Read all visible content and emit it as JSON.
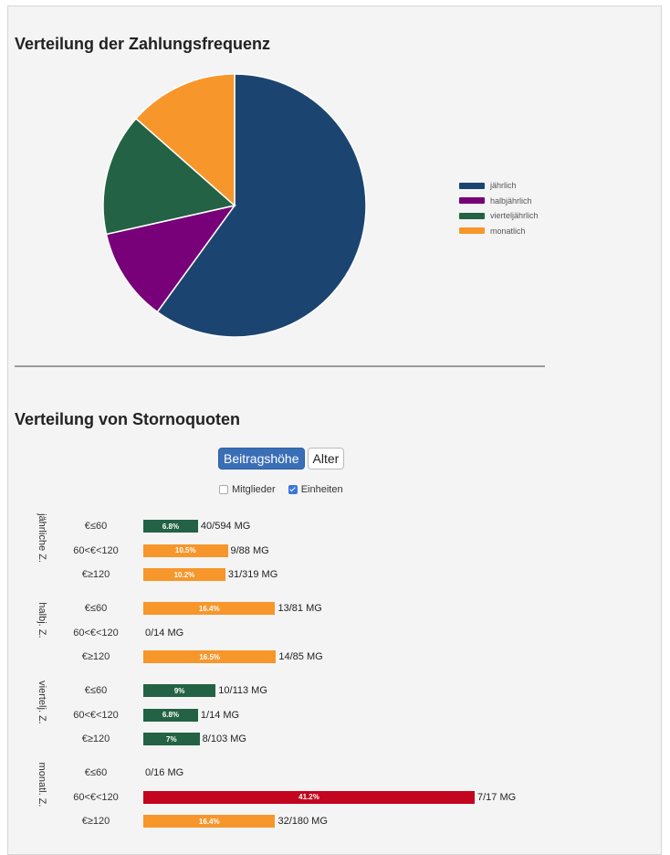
{
  "pie_section": {
    "title": "Verteilung der Zahlungsfrequenz"
  },
  "storno_section": {
    "title": "Verteilung von Stornoquoten",
    "buttons": [
      {
        "label": "Beitragshöhe",
        "active": true
      },
      {
        "label": "Alter",
        "active": false
      }
    ],
    "checkboxes": [
      {
        "label": "Mitglieder",
        "checked": false
      },
      {
        "label": "Einheiten",
        "checked": true
      }
    ]
  },
  "colors": {
    "jaehrlich": "#1b4570",
    "halbjaehrlich": "#780078",
    "vierteljaehrlich": "#236245",
    "monatlich": "#f7962a",
    "bar_green": "#236245",
    "bar_orange": "#f7962a",
    "bar_red": "#c3051f"
  },
  "chart_data": [
    {
      "type": "pie",
      "title": "Verteilung der Zahlungsfrequenz",
      "legend_position": "right",
      "slices": [
        {
          "label": "jährlich",
          "value": 60,
          "color": "#1b4570"
        },
        {
          "label": "halbjährlich",
          "value": 11.5,
          "color": "#780078"
        },
        {
          "label": "vierteljährlich",
          "value": 15,
          "color": "#236245"
        },
        {
          "label": "monatlich",
          "value": 13.5,
          "color": "#f7962a"
        }
      ]
    },
    {
      "type": "bar",
      "orientation": "horizontal",
      "title": "Verteilung von Stornoquoten",
      "xlim": [
        0,
        50
      ],
      "groups": [
        {
          "label": "jährliche Z.",
          "rows": [
            {
              "category": "€≤60",
              "value": 6.8,
              "bar_label": "6.8%",
              "count": "40/594 MG",
              "color": "#236245"
            },
            {
              "category": "60<€<120",
              "value": 10.5,
              "bar_label": "10.5%",
              "count": "9/88 MG",
              "color": "#f7962a"
            },
            {
              "category": "€≥120",
              "value": 10.2,
              "bar_label": "10.2%",
              "count": "31/319 MG",
              "color": "#f7962a"
            }
          ]
        },
        {
          "label": "halbj. Z.",
          "rows": [
            {
              "category": "€≤60",
              "value": 16.4,
              "bar_label": "16.4%",
              "count": "13/81 MG",
              "color": "#f7962a"
            },
            {
              "category": "60<€<120",
              "value": 0,
              "bar_label": "",
              "count": "0/14 MG",
              "color": "#236245"
            },
            {
              "category": "€≥120",
              "value": 16.5,
              "bar_label": "16.5%",
              "count": "14/85 MG",
              "color": "#f7962a"
            }
          ]
        },
        {
          "label": "viertelj. Z.",
          "rows": [
            {
              "category": "€≤60",
              "value": 9,
              "bar_label": "9%",
              "count": "10/113 MG",
              "color": "#236245"
            },
            {
              "category": "60<€<120",
              "value": 6.8,
              "bar_label": "6.8%",
              "count": "1/14 MG",
              "color": "#236245"
            },
            {
              "category": "€≥120",
              "value": 7,
              "bar_label": "7%",
              "count": "8/103 MG",
              "color": "#236245"
            }
          ]
        },
        {
          "label": "monatl. Z.",
          "rows": [
            {
              "category": "€≤60",
              "value": 0,
              "bar_label": "",
              "count": "0/16 MG",
              "color": "#236245"
            },
            {
              "category": "60<€<120",
              "value": 41.2,
              "bar_label": "41.2%",
              "count": "7/17 MG",
              "color": "#c3051f"
            },
            {
              "category": "€≥120",
              "value": 16.4,
              "bar_label": "16.4%",
              "count": "32/180 MG",
              "color": "#f7962a"
            }
          ]
        }
      ]
    }
  ]
}
